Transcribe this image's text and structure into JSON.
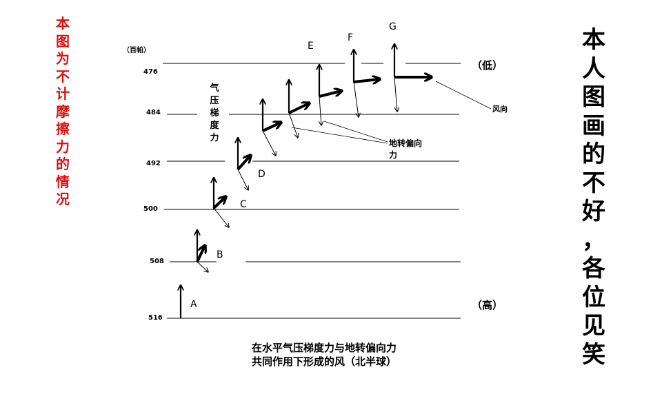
{
  "left_note": "本图为不计摩擦力的情况",
  "right_note": "本人图画的不好，各位见笑",
  "unit_label": "（百帕）",
  "isobars": [
    "476",
    "484",
    "492",
    "500",
    "508",
    "516"
  ],
  "low_label": "（低）",
  "high_label": "（高）",
  "points": [
    "A",
    "B",
    "C",
    "D",
    "E",
    "F",
    "G"
  ],
  "pgf_label": "气压梯度力",
  "coriolis_label": "地转偏向力",
  "wind_label": "风向",
  "caption_line1": "在水平气压梯度力与地转偏向力",
  "caption_line2": "共同作用下形成的风（北半球）"
}
